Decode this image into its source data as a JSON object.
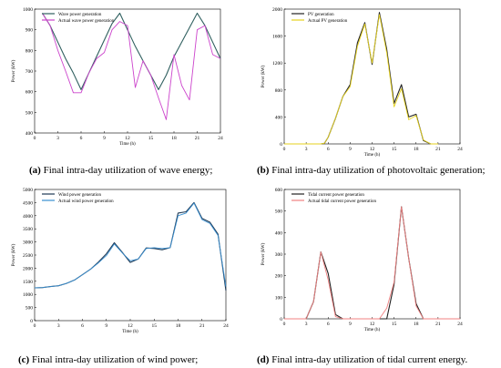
{
  "captions": [
    {
      "label": "(a)",
      "text": " Final intra-day utilization of wave energy;"
    },
    {
      "label": "(b)",
      "text": " Final intra-day utilization of photovoltaic generation;"
    },
    {
      "label": "(c)",
      "text": " Final intra-day utilization of wind power;"
    },
    {
      "label": "(d)",
      "text": " Final intra-day utilization of tidal current energy."
    }
  ],
  "chart_data": [
    {
      "type": "line",
      "xlabel": "Time (h)",
      "ylabel": "Power (kW)",
      "xlim": [
        0,
        24
      ],
      "ylim": [
        400,
        1000
      ],
      "xticks": [
        0,
        3,
        6,
        9,
        12,
        15,
        18,
        21,
        24
      ],
      "yticks": [
        400,
        500,
        600,
        700,
        800,
        900,
        1000
      ],
      "legend": "top-left",
      "series": [
        {
          "name": "Wave power generation",
          "color": "#2f5f5f",
          "x": [
            1,
            2,
            3,
            4,
            5,
            6,
            7,
            8,
            9,
            10,
            11,
            12,
            13,
            14,
            15,
            16,
            17,
            18,
            19,
            20,
            21,
            22,
            23,
            24
          ],
          "y": [
            980,
            920,
            840,
            760,
            690,
            610,
            690,
            770,
            850,
            930,
            980,
            900,
            820,
            750,
            680,
            610,
            680,
            770,
            840,
            910,
            980,
            920,
            840,
            760
          ]
        },
        {
          "name": "Actual wave power generation",
          "color": "#cc44cc",
          "x": [
            1,
            2,
            3,
            4,
            5,
            6,
            7,
            8,
            9,
            10,
            11,
            12,
            13,
            14,
            15,
            16,
            17,
            18,
            19,
            20,
            21,
            22,
            23,
            24
          ],
          "y": [
            980,
            920,
            800,
            700,
            595,
            595,
            690,
            760,
            790,
            900,
            940,
            920,
            620,
            750,
            680,
            570,
            465,
            780,
            630,
            560,
            900,
            920,
            780,
            760
          ]
        }
      ]
    },
    {
      "type": "line",
      "xlabel": "Time (h)",
      "ylabel": "Power (kW)",
      "xlim": [
        0,
        24
      ],
      "ylim": [
        0,
        2000
      ],
      "xticks": [
        0,
        3,
        6,
        9,
        12,
        15,
        18,
        21,
        24
      ],
      "yticks": [
        0,
        400,
        800,
        1200,
        1600,
        2000
      ],
      "legend": "top-left",
      "series": [
        {
          "name": "PV generation",
          "color": "#222222",
          "x": [
            5,
            5.5,
            6,
            7,
            8,
            9,
            10,
            11,
            12,
            13,
            14,
            15,
            16,
            17,
            18,
            19,
            20,
            21
          ],
          "y": [
            0,
            10,
            100,
            380,
            700,
            880,
            1500,
            1800,
            1180,
            1950,
            1400,
            600,
            880,
            400,
            440,
            50,
            0,
            0
          ]
        },
        {
          "name": "Actual PV generation",
          "color": "#e6d21e",
          "x": [
            0,
            1,
            2,
            3,
            4,
            5,
            5.5,
            6,
            7,
            8,
            9,
            10,
            11,
            12,
            13,
            14,
            15,
            16,
            17,
            18,
            19,
            20,
            21
          ],
          "y": [
            0,
            0,
            0,
            0,
            0,
            0,
            10,
            100,
            380,
            700,
            850,
            1450,
            1780,
            1200,
            1920,
            1350,
            550,
            820,
            360,
            420,
            60,
            0,
            0
          ]
        }
      ]
    },
    {
      "type": "line",
      "xlabel": "Time (h)",
      "ylabel": "Power (kW)",
      "xlim": [
        0,
        24
      ],
      "ylim": [
        0,
        5000
      ],
      "xticks": [
        0,
        3,
        6,
        9,
        12,
        15,
        18,
        21,
        24
      ],
      "yticks": [
        0,
        500,
        1000,
        1500,
        2000,
        2500,
        3000,
        3500,
        4000,
        4500,
        5000
      ],
      "legend": "top-left",
      "series": [
        {
          "name": "Wind power generation",
          "color": "#1f3a55",
          "x": [
            0,
            1,
            2,
            3,
            4,
            5,
            6,
            7,
            8,
            9,
            10,
            11,
            12,
            13,
            14,
            15,
            16,
            17,
            18,
            19,
            20,
            21,
            22,
            23,
            24
          ],
          "y": [
            1250,
            1260,
            1300,
            1330,
            1420,
            1550,
            1750,
            1960,
            2230,
            2550,
            2970,
            2600,
            2220,
            2350,
            2770,
            2750,
            2700,
            2780,
            4100,
            4150,
            4500,
            3900,
            3750,
            3300,
            1150
          ]
        },
        {
          "name": "Actual wind power generation",
          "color": "#3a8fd0",
          "x": [
            0,
            1,
            2,
            3,
            4,
            5,
            6,
            7,
            8,
            9,
            10,
            11,
            12,
            13,
            14,
            15,
            16,
            17,
            18,
            19,
            20,
            21,
            22,
            23,
            24
          ],
          "y": [
            1250,
            1260,
            1300,
            1330,
            1420,
            1550,
            1750,
            1960,
            2200,
            2480,
            2920,
            2580,
            2280,
            2350,
            2750,
            2780,
            2750,
            2780,
            4000,
            4100,
            4480,
            3850,
            3700,
            3250,
            1300
          ]
        }
      ]
    },
    {
      "type": "line",
      "xlabel": "Time (h)",
      "ylabel": "Power (kW)",
      "xlim": [
        0,
        24
      ],
      "ylim": [
        0,
        600
      ],
      "xticks": [
        0,
        3,
        6,
        9,
        12,
        15,
        18,
        21,
        24
      ],
      "yticks": [
        0,
        100,
        200,
        300,
        400,
        500,
        600
      ],
      "legend": "top-left",
      "series": [
        {
          "name": "Tidal current power generation",
          "color": "#222222",
          "x": [
            0,
            1,
            2,
            3,
            4,
            5,
            6,
            7,
            8,
            9,
            10,
            11,
            12,
            13,
            14,
            15,
            16,
            17,
            18,
            19,
            20,
            21,
            22,
            23,
            24
          ],
          "y": [
            0,
            0,
            0,
            0,
            80,
            310,
            210,
            20,
            0,
            0,
            0,
            0,
            0,
            0,
            0,
            160,
            520,
            280,
            70,
            0,
            0,
            0,
            0,
            0,
            0
          ]
        },
        {
          "name": "Actual tidal current power generation",
          "color": "#f08080",
          "x": [
            0,
            1,
            2,
            3,
            4,
            5,
            6,
            7,
            8,
            9,
            10,
            11,
            12,
            13,
            14,
            15,
            16,
            17,
            18,
            19,
            20,
            21,
            22,
            23,
            24
          ],
          "y": [
            0,
            0,
            0,
            0,
            80,
            310,
            180,
            10,
            0,
            0,
            0,
            0,
            0,
            0,
            50,
            170,
            520,
            280,
            60,
            0,
            0,
            0,
            0,
            0,
            0
          ]
        }
      ]
    }
  ]
}
